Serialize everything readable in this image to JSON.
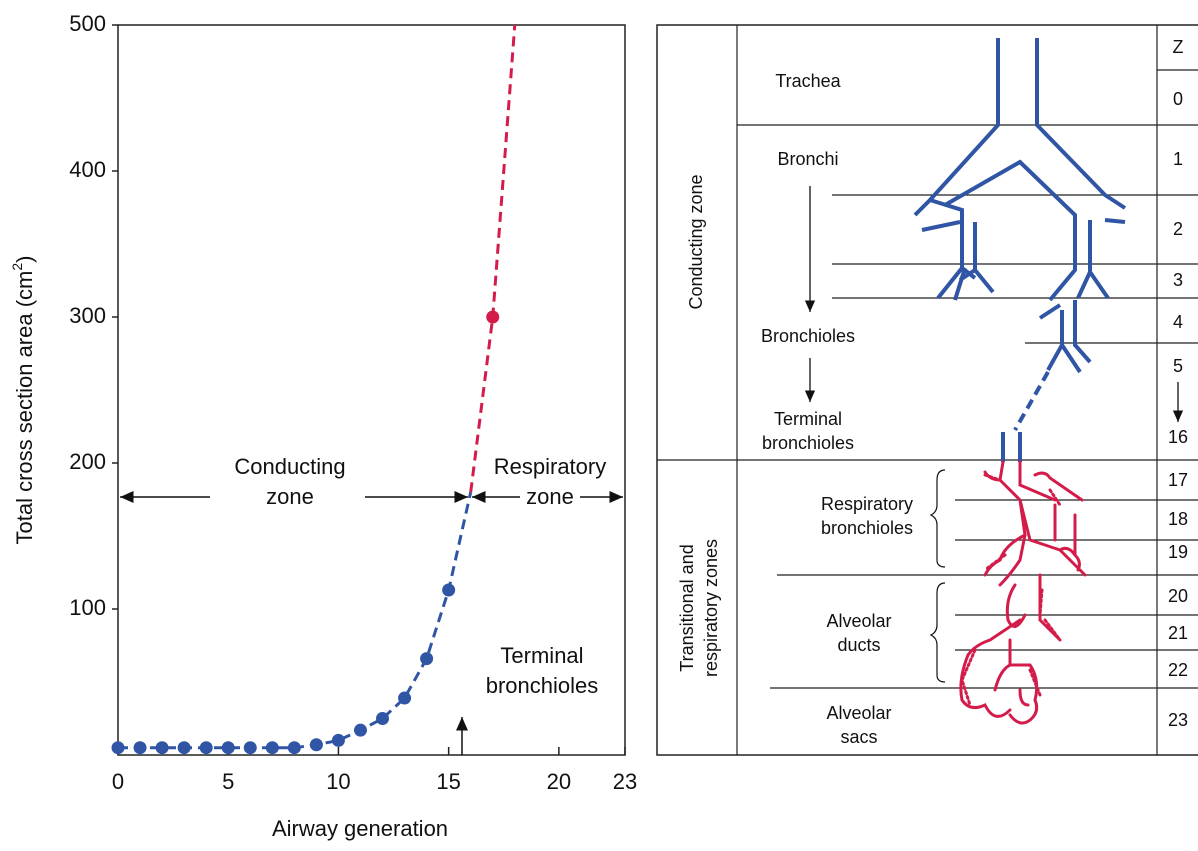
{
  "chart_data": {
    "type": "line",
    "xlabel": "Airway generation",
    "ylabel": {
      "text": "Total cross section area (cm",
      "sup": "2",
      "end": ")"
    },
    "xlim": [
      0,
      23
    ],
    "ylim": [
      0,
      500
    ],
    "xticks": [
      0,
      5,
      10,
      15,
      20,
      23
    ],
    "yticks": [
      100,
      200,
      300,
      400,
      500
    ],
    "series": [
      {
        "color": "#2f55a4",
        "style": "dashed",
        "x": [
          0,
          1,
          2,
          3,
          4,
          5,
          6,
          7,
          8,
          9,
          10,
          11,
          12,
          13,
          14,
          15,
          16
        ],
        "values": [
          5,
          5,
          5,
          5,
          5,
          5,
          5,
          5,
          5,
          7,
          10,
          17,
          25,
          39,
          66,
          113,
          180
        ]
      },
      {
        "color": "#2f55a4",
        "style": "points",
        "x": [
          0,
          1,
          2,
          3,
          4,
          5,
          6,
          7,
          8,
          9,
          10,
          11,
          12,
          13,
          14,
          15
        ],
        "values": [
          5,
          5,
          5,
          5,
          5,
          5,
          5,
          5,
          5,
          7,
          10,
          17,
          25,
          39,
          66,
          113
        ]
      },
      {
        "color": "#d41c4a",
        "style": "dashed",
        "x": [
          16,
          17,
          18
        ],
        "values": [
          180,
          300,
          500
        ]
      },
      {
        "color": "#d41c4a",
        "style": "points",
        "x": [
          17
        ],
        "values": [
          300
        ]
      }
    ],
    "annotations": [
      {
        "lines": [
          "Conducting",
          "zone"
        ]
      },
      {
        "lines": [
          "Respiratory",
          "zone"
        ]
      },
      {
        "lines": [
          "Terminal",
          "bronchioles"
        ]
      }
    ]
  },
  "diagram": {
    "zones": [
      {
        "lines": [
          "Conducting zone"
        ]
      },
      {
        "lines": [
          "Transitional and",
          "respiratory zones"
        ]
      }
    ],
    "z_header": "Z",
    "z_labels": [
      "0",
      "1",
      "2",
      "3",
      "4",
      "5",
      "16",
      "17",
      "18",
      "19",
      "20",
      "21",
      "22",
      "23"
    ],
    "labels": [
      {
        "lines": [
          "Trachea"
        ]
      },
      {
        "lines": [
          "Bronchi"
        ]
      },
      {
        "lines": [
          "Bronchioles"
        ]
      },
      {
        "lines": [
          "Terminal",
          "bronchioles"
        ]
      },
      {
        "lines": [
          "Respiratory",
          "bronchioles"
        ]
      },
      {
        "lines": [
          "Alveolar",
          "ducts"
        ]
      },
      {
        "lines": [
          "Alveolar",
          "sacs"
        ]
      }
    ]
  }
}
